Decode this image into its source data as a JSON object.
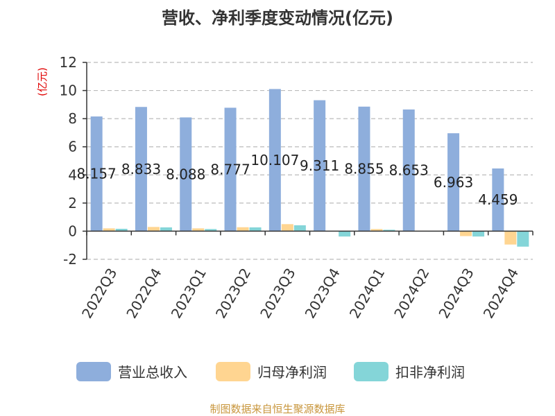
{
  "chart_data": {
    "type": "bar",
    "title": "营收、净利季度变动情况(亿元)",
    "ylabel": "(亿元)",
    "ylim": [
      -2,
      12
    ],
    "yticks": [
      -2,
      0,
      2,
      4,
      6,
      8,
      10,
      12
    ],
    "grid": true,
    "legend_position": "bottom",
    "categories": [
      "2022Q3",
      "2022Q4",
      "2023Q1",
      "2023Q2",
      "2023Q3",
      "2023Q4",
      "2024Q1",
      "2024Q2",
      "2024Q3",
      "2024Q4"
    ],
    "series": [
      {
        "name": "营业总收入",
        "color": "#8eaedc",
        "values": [
          8.157,
          8.833,
          8.088,
          8.777,
          10.107,
          9.311,
          8.855,
          8.653,
          6.963,
          4.459
        ],
        "labels": [
          "8.157",
          "8.833",
          "8.088",
          "8.777",
          "10.107",
          "9.311",
          "8.855",
          "8.653",
          "6.963",
          "4.459"
        ]
      },
      {
        "name": "归母净利润",
        "color": "#ffd591",
        "values": [
          0.2,
          0.3,
          0.2,
          0.28,
          0.5,
          0.02,
          0.15,
          0.03,
          -0.35,
          -0.95
        ]
      },
      {
        "name": "扣非净利润",
        "color": "#84d5d8",
        "values": [
          0.17,
          0.27,
          0.15,
          0.27,
          0.42,
          -0.38,
          0.1,
          0.02,
          -0.38,
          -1.1
        ]
      }
    ],
    "source": "制图数据来自恒生聚源数据库"
  }
}
